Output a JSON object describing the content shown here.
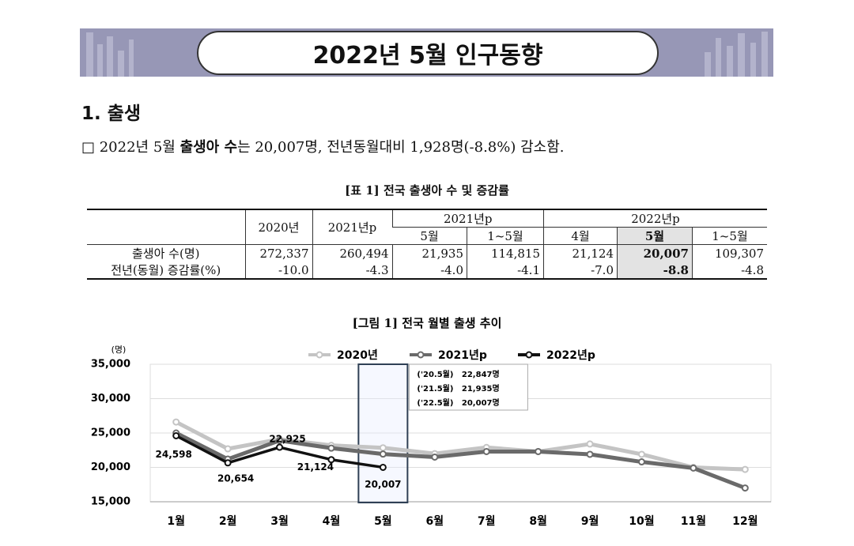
{
  "header": {
    "title": "2022년 5월 인구동향"
  },
  "section": {
    "title": "1. 출생",
    "text": [
      "□ 2022년 5월 ",
      "출생아 수",
      "는 20,007명, 전년동월대비 1,928명(-8.8%) 감소함."
    ]
  },
  "table": {
    "title": "[표 1] 전국 출생아 수 및 증감률",
    "header": [
      "2020년",
      "2021년p",
      "2021년p",
      "5월",
      "1~5월",
      "2022년p",
      "4월",
      "5월",
      "1~5월"
    ],
    "rows": [
      [
        "출생아 수(명)",
        "272,337",
        "260,494",
        "21,935",
        "114,815",
        "21,124",
        "20,007",
        "109,307"
      ],
      [
        "전년(동월) 증감률(%)",
        "-10.0",
        "-4.3",
        "-4.0",
        "-4.1",
        "-7.0",
        "-8.8",
        "-4.8"
      ]
    ]
  },
  "chart_data": {
    "type": "line",
    "title": "[그림 1] 전국 월별 출생 추이",
    "y_label": "(명)",
    "categories": [
      "1월",
      "2월",
      "3월",
      "4월",
      "5월",
      "6월",
      "7월",
      "8월",
      "9월",
      "10월",
      "11월",
      "12월"
    ],
    "series": [
      {
        "name": "2020년",
        "color": "#c4c4c4",
        "values": [
          26600,
          22700,
          24100,
          23200,
          22847,
          22000,
          22900,
          22300,
          23400,
          21900,
          20000,
          19700
        ]
      },
      {
        "name": "2021년p",
        "color": "#6a6a6a",
        "values": [
          25000,
          21200,
          23900,
          22800,
          21935,
          21500,
          22300,
          22300,
          21900,
          20800,
          19900,
          17000
        ]
      },
      {
        "name": "2022년p",
        "color": "#111111",
        "values": [
          24598,
          20654,
          22925,
          21124,
          20007,
          null,
          null,
          null,
          null,
          null,
          null,
          null
        ],
        "value_labels": [
          "24,598",
          "20,654",
          "22,925",
          "21,124",
          "20,007",
          null,
          null,
          null,
          null,
          null,
          null,
          null
        ]
      }
    ],
    "annotations": [
      "('20.5월)   22,847명",
      "('21.5월)   21,935명",
      "('22.5월)   20,007명"
    ],
    "ylim": [
      15000,
      35000
    ],
    "yticks": [
      {
        "value": 15000,
        "label": "15,000"
      },
      {
        "value": 20000,
        "label": "20,000"
      },
      {
        "value": 25000,
        "label": "25,000"
      },
      {
        "value": 30000,
        "label": "30,000"
      },
      {
        "value": 35000,
        "label": "35,000"
      }
    ],
    "grid": true,
    "legend": "top"
  }
}
